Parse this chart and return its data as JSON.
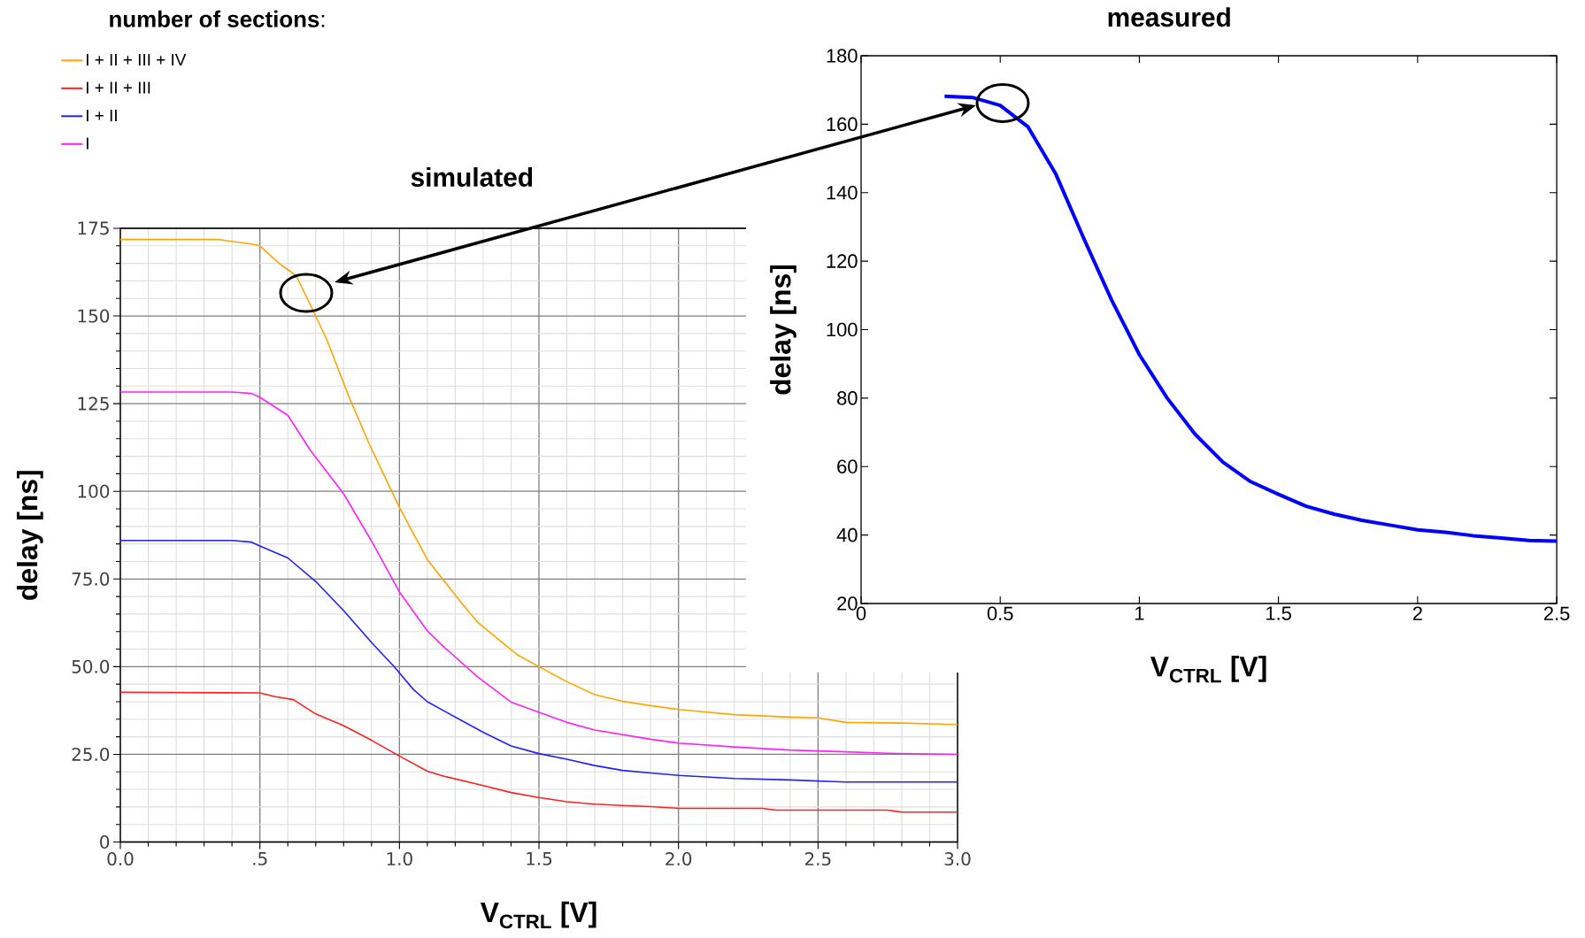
{
  "chart_data": [
    {
      "type": "line",
      "title": "simulated",
      "xlabel": "V$_{CTRL}$ [V]",
      "ylabel": "delay [ns]",
      "legend_title": "**number of sections**:",
      "legend": "top left",
      "grid": true,
      "xlim": [
        0,
        3
      ],
      "ylim": [
        0,
        175
      ],
      "xticks": [
        {
          "value": 0,
          "label": "0.0"
        },
        {
          "value": 0.5,
          "label": ".5"
        },
        {
          "value": 1,
          "label": "1.0"
        },
        {
          "value": 1.5,
          "label": "1.5"
        },
        {
          "value": 2,
          "label": "2.0"
        },
        {
          "value": 2.5,
          "label": "2.5"
        },
        {
          "value": 3,
          "label": "3.0"
        }
      ],
      "yticks": [
        0,
        {
          "value": 25,
          "label": "25.0"
        },
        {
          "value": 50,
          "label": "50.0"
        },
        {
          "value": 75,
          "label": "75.0"
        },
        100,
        125,
        150,
        175
      ],
      "series": [
        {
          "name": "I + II + III + IV",
          "color": "#ffa500",
          "x": [
            0,
            0.35,
            0.47,
            0.5,
            0.57,
            0.63,
            0.68,
            0.74,
            0.82,
            0.89,
            1.0,
            1.1,
            1.22,
            1.28,
            1.42,
            1.5,
            1.6,
            1.7,
            1.8,
            1.9,
            2.0,
            2.2,
            2.4,
            2.5,
            2.6,
            2.8,
            3.0
          ],
          "values": [
            171.8,
            171.8,
            170.5,
            170,
            164.9,
            161.5,
            153.3,
            143.2,
            126.8,
            113.8,
            95.4,
            80.5,
            68.4,
            62.7,
            53.5,
            50,
            45.7,
            42.0,
            40.1,
            38.9,
            37.8,
            36.3,
            35.6,
            35.4,
            34.1,
            33.9,
            33.5
          ]
        },
        {
          "name": "I + II + III",
          "color": "#ff2020",
          "x": [
            0,
            0.5,
            0.55,
            0.62,
            0.7,
            0.8,
            0.9,
            1.0,
            1.1,
            1.157,
            1.3,
            1.4,
            1.5,
            1.6,
            1.7,
            1.8,
            1.9,
            2.0,
            2.3,
            2.35,
            2.75,
            2.8,
            3.0
          ],
          "values": [
            42.7,
            42.5,
            41.5,
            40.6,
            36.5,
            33.2,
            29,
            24.5,
            20.2,
            18.8,
            16.1,
            14.1,
            12.7,
            11.5,
            10.8,
            10.4,
            10.1,
            9.6,
            9.6,
            9.1,
            9.1,
            8.5,
            8.5
          ]
        },
        {
          "name": "I + II",
          "color": "#2020ff",
          "x": [
            0,
            0.4,
            0.47,
            0.5,
            0.6,
            0.7,
            0.8,
            0.9,
            0.98,
            1.05,
            1.1,
            1.157,
            1.3,
            1.4,
            1.5,
            1.6,
            1.7,
            1.8,
            1.9,
            2.0,
            2.2,
            2.4,
            2.6,
            3.0
          ],
          "values": [
            86,
            86,
            85.5,
            84.4,
            81,
            74.3,
            66,
            56.9,
            50.1,
            43.5,
            40,
            37.5,
            31.3,
            27.4,
            25.2,
            23.6,
            21.8,
            20.4,
            19.7,
            19,
            18.1,
            17.7,
            17.1,
            17.1
          ]
        },
        {
          "name": "I",
          "color": "#ff20ff",
          "x": [
            0,
            0.4,
            0.47,
            0.5,
            0.6,
            0.68,
            0.8,
            0.9,
            1.0,
            1.1,
            1.157,
            1.28,
            1.4,
            1.5,
            1.6,
            1.7,
            1.9,
            2.0,
            2.2,
            2.4,
            2.6,
            2.75,
            3.0
          ],
          "values": [
            128.3,
            128.3,
            127.9,
            126.8,
            121.7,
            111.8,
            99.3,
            85.8,
            71.3,
            60.2,
            55.8,
            47.1,
            39.9,
            37.0,
            34.1,
            31.9,
            29.3,
            28.2,
            27.1,
            26.2,
            25.7,
            25.3,
            25.0
          ]
        }
      ]
    },
    {
      "type": "line",
      "title": "measured",
      "xlabel": "V$_{CTRL}$ [V]",
      "ylabel": "delay [ns]",
      "xlim": [
        0,
        2.5
      ],
      "ylim": [
        20,
        180
      ],
      "xticks": [
        0,
        0.5,
        1,
        1.5,
        2,
        2.5
      ],
      "yticks": [
        20,
        40,
        60,
        80,
        100,
        120,
        140,
        160,
        180
      ],
      "series": [
        {
          "color": "#0000ff",
          "x": [
            0.3,
            0.4,
            0.5,
            0.6,
            0.7,
            0.8,
            0.9,
            1.0,
            1.1,
            1.2,
            1.3,
            1.4,
            1.5,
            1.6,
            1.7,
            1.8,
            1.9,
            2.0,
            2.1,
            2.2,
            2.3,
            2.4,
            2.5
          ],
          "values": [
            168.2,
            167.8,
            165.5,
            159.2,
            145.4,
            126.7,
            108.7,
            92.7,
            80.0,
            69.5,
            61.3,
            55.6,
            51.9,
            48.4,
            46.1,
            44.3,
            42.9,
            41.5,
            40.8,
            39.8,
            39.1,
            38.4,
            38.2
          ]
        }
      ]
    }
  ]
}
